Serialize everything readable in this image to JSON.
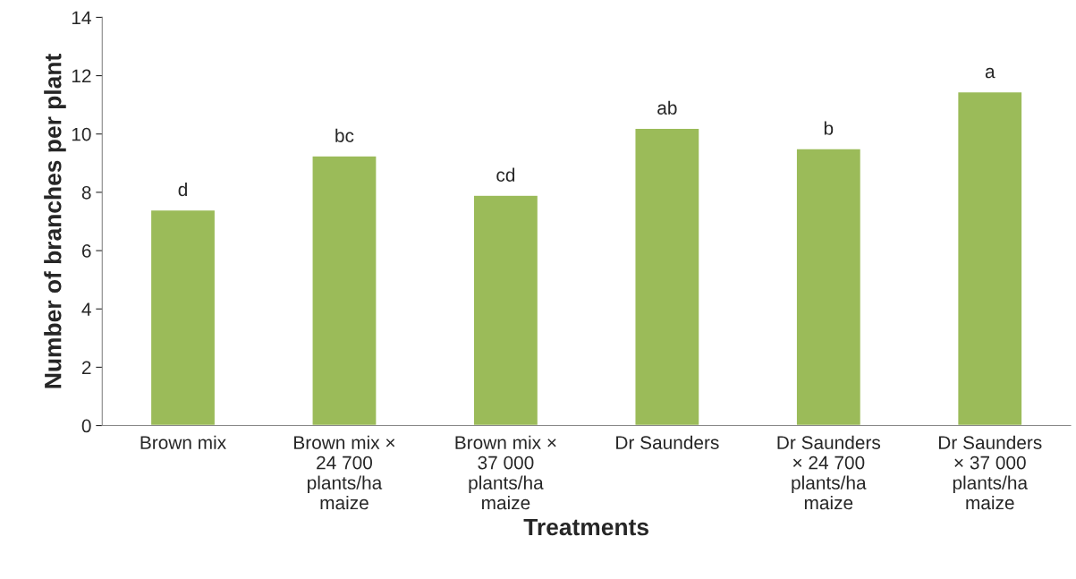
{
  "chart_data": {
    "type": "bar",
    "xlabel": "Treatments",
    "ylabel": "Number of branches per plant",
    "categories": [
      "Brown mix",
      "Brown mix ×\n24 700\nplants/ha\nmaize",
      "Brown mix ×\n37 000\nplants/ha\nmaize",
      "Dr Saunders",
      "Dr Saunders\n× 24 700\nplants/ha\nmaize",
      "Dr Saunders\n× 37 000\nplants/ha\nmaize"
    ],
    "values": [
      7.4,
      9.25,
      7.9,
      10.2,
      9.5,
      11.45
    ],
    "color": "#9bbb59",
    "ylim": [
      0,
      14
    ],
    "yticks": [
      0,
      2,
      4,
      6,
      8,
      10,
      12,
      14
    ],
    "grid": false,
    "annotations": [
      {
        "text": "d",
        "x": "Brown mix",
        "y": 7.4
      },
      {
        "text": "bc",
        "x": "Brown mix ×\n24 700\nplants/ha\nmaize",
        "y": 9.25
      },
      {
        "text": "cd",
        "x": "Brown mix ×\n37 000\nplants/ha\nmaize",
        "y": 7.9
      },
      {
        "text": "ab",
        "x": "Dr Saunders",
        "y": 10.2
      },
      {
        "text": "b",
        "x": "Dr Saunders\n× 24 700\nplants/ha\nmaize",
        "y": 9.5
      },
      {
        "text": "a",
        "x": "Dr Saunders\n× 37 000\nplants/ha\nmaize",
        "y": 11.45
      }
    ]
  }
}
